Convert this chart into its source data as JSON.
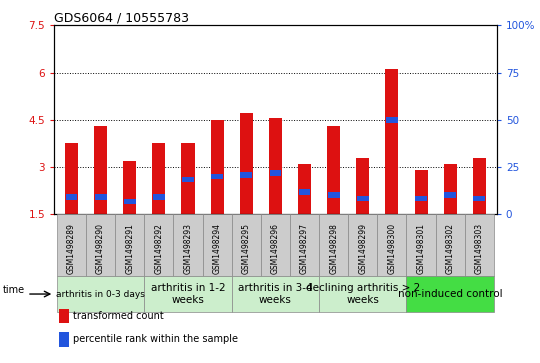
{
  "title": "GDS6064 / 10555783",
  "samples": [
    "GSM1498289",
    "GSM1498290",
    "GSM1498291",
    "GSM1498292",
    "GSM1498293",
    "GSM1498294",
    "GSM1498295",
    "GSM1498296",
    "GSM1498297",
    "GSM1498298",
    "GSM1498299",
    "GSM1498300",
    "GSM1498301",
    "GSM1498302",
    "GSM1498303"
  ],
  "transformed_count": [
    3.75,
    4.3,
    3.2,
    3.75,
    3.75,
    4.5,
    4.7,
    4.55,
    3.1,
    4.3,
    3.3,
    6.1,
    2.9,
    3.1,
    3.3
  ],
  "percentile_rank": [
    2.05,
    2.05,
    1.9,
    2.05,
    2.6,
    2.7,
    2.75,
    2.8,
    2.2,
    2.1,
    2.0,
    4.5,
    2.0,
    2.1,
    2.0
  ],
  "percentile_height": [
    0.18,
    0.18,
    0.18,
    0.18,
    0.18,
    0.18,
    0.18,
    0.18,
    0.18,
    0.18,
    0.18,
    0.18,
    0.18,
    0.18,
    0.18
  ],
  "ylim": [
    1.5,
    7.5
  ],
  "yticks_left": [
    1.5,
    3.0,
    4.5,
    6.0,
    7.5
  ],
  "ytick_labels_left": [
    "1.5",
    "3",
    "4.5",
    "6",
    "7.5"
  ],
  "ytick_labels_right": [
    "0",
    "25",
    "50",
    "75",
    "100%"
  ],
  "bar_color": "#dd1111",
  "percentile_color": "#2255dd",
  "bar_width": 0.45,
  "groups": [
    {
      "label": "arthritis in 0-3 days",
      "start": 0,
      "end": 3,
      "color": "#cceecc",
      "fontsize": 6.5
    },
    {
      "label": "arthritis in 1-2\nweeks",
      "start": 3,
      "end": 6,
      "color": "#cceecc",
      "fontsize": 7.5
    },
    {
      "label": "arthritis in 3-4\nweeks",
      "start": 6,
      "end": 9,
      "color": "#cceecc",
      "fontsize": 7.5
    },
    {
      "label": "declining arthritis > 2\nweeks",
      "start": 9,
      "end": 12,
      "color": "#cceecc",
      "fontsize": 7.5
    },
    {
      "label": "non-induced control",
      "start": 12,
      "end": 15,
      "color": "#44dd44",
      "fontsize": 7.5
    }
  ],
  "legend_items": [
    {
      "color": "#dd1111",
      "label": "transformed count"
    },
    {
      "color": "#2255dd",
      "label": "percentile rank within the sample"
    }
  ],
  "grid_yticks": [
    3.0,
    4.5,
    6.0
  ],
  "background_color": "#ffffff",
  "sample_box_color": "#cccccc",
  "sample_box_edge": "#888888"
}
